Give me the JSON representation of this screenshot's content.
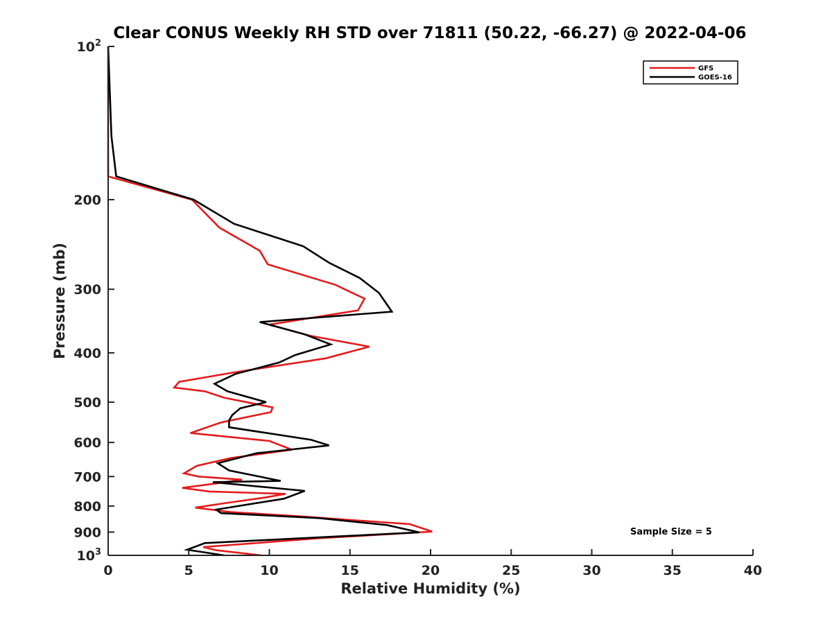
{
  "chart_data": {
    "type": "line",
    "title": "Clear CONUS Weekly RH STD over 71811 (50.22, -66.27) @ 2022-04-06",
    "xlabel": "Relative Humidity (%)",
    "ylabel": "Pressure (mb)",
    "xlim": [
      0,
      40
    ],
    "ylim": [
      100,
      1000
    ],
    "y_scale": "log",
    "y_reversed": true,
    "x_ticks": [
      {
        "value": 0,
        "label": "0"
      },
      {
        "value": 5,
        "label": "5"
      },
      {
        "value": 10,
        "label": "10"
      },
      {
        "value": 15,
        "label": "15"
      },
      {
        "value": 20,
        "label": "20"
      },
      {
        "value": 25,
        "label": "25"
      },
      {
        "value": 30,
        "label": "30"
      },
      {
        "value": 35,
        "label": "35"
      },
      {
        "value": 40,
        "label": "40"
      }
    ],
    "y_ticks": [
      {
        "value": 100,
        "label": "10",
        "sup": "2"
      },
      {
        "value": 200,
        "label": "200"
      },
      {
        "value": 300,
        "label": "300"
      },
      {
        "value": 400,
        "label": "400"
      },
      {
        "value": 500,
        "label": "500"
      },
      {
        "value": 600,
        "label": "600"
      },
      {
        "value": 700,
        "label": "700"
      },
      {
        "value": 800,
        "label": "800"
      },
      {
        "value": 900,
        "label": "900"
      },
      {
        "value": 1000,
        "label": "10",
        "sup": "3"
      }
    ],
    "grid": false,
    "legend_position": "top-right",
    "annotation": "Sample Size = 5",
    "series": [
      {
        "name": "GFS",
        "color": "#e41a1c",
        "points": [
          [
            0,
            100
          ],
          [
            0,
            150
          ],
          [
            0,
            180
          ],
          [
            5.2,
            200
          ],
          [
            6.9,
            227
          ],
          [
            9.4,
            252
          ],
          [
            9.9,
            268
          ],
          [
            14.1,
            294
          ],
          [
            15.9,
            313
          ],
          [
            15.5,
            330
          ],
          [
            10.0,
            352
          ],
          [
            12.5,
            370
          ],
          [
            16.2,
            389
          ],
          [
            13.5,
            410
          ],
          [
            8.0,
            436
          ],
          [
            4.4,
            456
          ],
          [
            4.1,
            468
          ],
          [
            6.0,
            476
          ],
          [
            7.2,
            490
          ],
          [
            10.2,
            512
          ],
          [
            10.1,
            523
          ],
          [
            7.0,
            548
          ],
          [
            5.1,
            575
          ],
          [
            10.0,
            596
          ],
          [
            11.4,
            620
          ],
          [
            7.6,
            644
          ],
          [
            5.5,
            667
          ],
          [
            4.7,
            690
          ],
          [
            5.6,
            700
          ],
          [
            8.3,
            710
          ],
          [
            7.0,
            720
          ],
          [
            4.6,
            737
          ],
          [
            6.3,
            749
          ],
          [
            11.0,
            757
          ],
          [
            9.7,
            770
          ],
          [
            7.2,
            790
          ],
          [
            5.4,
            806
          ],
          [
            7.6,
            822
          ],
          [
            11.9,
            838
          ],
          [
            15.0,
            852
          ],
          [
            18.7,
            868
          ],
          [
            20.1,
            898
          ],
          [
            13.0,
            926
          ],
          [
            5.9,
            963
          ],
          [
            6.7,
            977
          ],
          [
            9.5,
            1000
          ]
        ]
      },
      {
        "name": "GOES-16",
        "color": "#000000",
        "points": [
          [
            0,
            100
          ],
          [
            0.2,
            150
          ],
          [
            0.5,
            180
          ],
          [
            5.3,
            200
          ],
          [
            7.8,
            223
          ],
          [
            12.1,
            247
          ],
          [
            13.7,
            266
          ],
          [
            15.6,
            285
          ],
          [
            16.8,
            305
          ],
          [
            17.6,
            332
          ],
          [
            9.4,
            348
          ],
          [
            12.2,
            368
          ],
          [
            13.8,
            385
          ],
          [
            11.6,
            404
          ],
          [
            10.6,
            418
          ],
          [
            7.9,
            440
          ],
          [
            6.6,
            460
          ],
          [
            7.4,
            476
          ],
          [
            9.8,
            500
          ],
          [
            8.2,
            514
          ],
          [
            7.7,
            530
          ],
          [
            7.5,
            543
          ],
          [
            7.5,
            560
          ],
          [
            12.6,
            593
          ],
          [
            13.7,
            608
          ],
          [
            9.2,
            630
          ],
          [
            6.8,
            659
          ],
          [
            7.5,
            681
          ],
          [
            10.7,
            714
          ],
          [
            6.5,
            718
          ],
          [
            12.2,
            747
          ],
          [
            10.9,
            774
          ],
          [
            6.7,
            813
          ],
          [
            7.0,
            826
          ],
          [
            13.1,
            845
          ],
          [
            17.3,
            872
          ],
          [
            19.3,
            901
          ],
          [
            6.0,
            946
          ],
          [
            4.9,
            975
          ],
          [
            7.2,
            1000
          ]
        ]
      }
    ]
  }
}
